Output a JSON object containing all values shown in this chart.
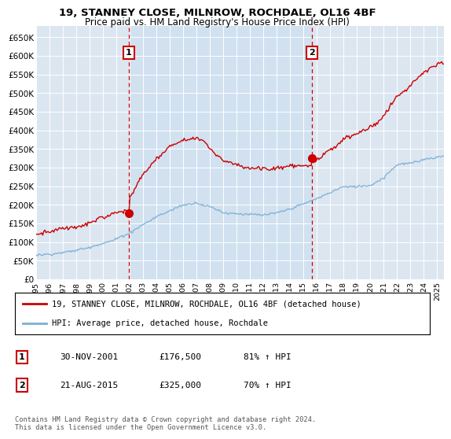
{
  "title": "19, STANNEY CLOSE, MILNROW, ROCHDALE, OL16 4BF",
  "subtitle": "Price paid vs. HM Land Registry's House Price Index (HPI)",
  "ylabel_ticks": [
    "£0",
    "£50K",
    "£100K",
    "£150K",
    "£200K",
    "£250K",
    "£300K",
    "£350K",
    "£400K",
    "£450K",
    "£500K",
    "£550K",
    "£600K",
    "£650K"
  ],
  "ylim": [
    0,
    680000
  ],
  "xlim_start": 1995.0,
  "xlim_end": 2025.5,
  "sale1_date": 2001.917,
  "sale1_price": 176500,
  "sale2_date": 2015.646,
  "sale2_price": 325000,
  "red_line_color": "#cc0000",
  "blue_line_color": "#7bafd4",
  "shade_color": "#dce9f5",
  "marker_box_color": "#cc0000",
  "legend_line1": "19, STANNEY CLOSE, MILNROW, ROCHDALE, OL16 4BF (detached house)",
  "legend_line2": "HPI: Average price, detached house, Rochdale",
  "table_row1": [
    "1",
    "30-NOV-2001",
    "£176,500",
    "81% ↑ HPI"
  ],
  "table_row2": [
    "2",
    "21-AUG-2015",
    "£325,000",
    "70% ↑ HPI"
  ],
  "footnote": "Contains HM Land Registry data © Crown copyright and database right 2024.\nThis data is licensed under the Open Government Licence v3.0.",
  "plot_bg_color": "#dce6f1",
  "fig_bg_color": "#ffffff"
}
